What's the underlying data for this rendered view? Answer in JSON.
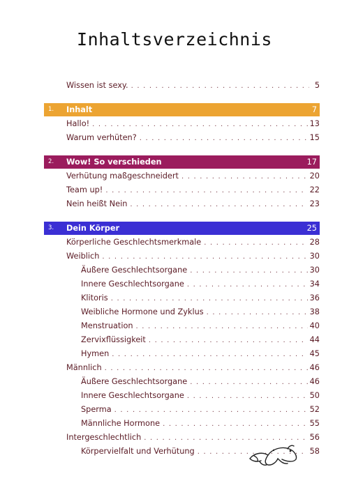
{
  "title": "Inhaltsverzeichnis",
  "intro": {
    "title": "Wissen ist sexy.",
    "page": "5"
  },
  "chapters": [
    {
      "num": "1.",
      "title": "Inhalt",
      "page": "7",
      "color": "#eca432",
      "entries": [
        {
          "title": "Hallo!",
          "page": "13"
        },
        {
          "title": "Warum verhüten?",
          "page": "15"
        }
      ]
    },
    {
      "num": "2.",
      "title": "Wow! So verschieden",
      "page": "17",
      "color": "#9b1c5d",
      "entries": [
        {
          "title": "Verhütung maßgeschneidert",
          "page": "20"
        },
        {
          "title": "Team up!",
          "page": "22"
        },
        {
          "title": "Nein heißt Nein",
          "page": "23"
        }
      ]
    },
    {
      "num": "3.",
      "title": "Dein Körper",
      "page": "25",
      "color": "#3b2fd4",
      "entries": [
        {
          "title": "Körperliche Geschlechtsmerkmale",
          "page": "28"
        },
        {
          "title": "Weiblich",
          "page": "30"
        },
        {
          "title": "Äußere Geschlechtsorgane",
          "page": "30",
          "sub": true
        },
        {
          "title": "Innere Geschlechtsorgane",
          "page": "34",
          "sub": true
        },
        {
          "title": "Klitoris",
          "page": "36",
          "sub": true
        },
        {
          "title": "Weibliche Hormone und Zyklus",
          "page": "38",
          "sub": true
        },
        {
          "title": "Menstruation",
          "page": "40",
          "sub": true
        },
        {
          "title": "Zervixflüssigkeit",
          "page": "44",
          "sub": true
        },
        {
          "title": "Hymen",
          "page": "45",
          "sub": true
        },
        {
          "title": "Männlich",
          "page": "46"
        },
        {
          "title": "Äußere Geschlechtsorgane",
          "page": "46",
          "sub": true
        },
        {
          "title": "Innere Geschlechtsorgane",
          "page": "50",
          "sub": true
        },
        {
          "title": "Sperma",
          "page": "52",
          "sub": true
        },
        {
          "title": "Männliche Hormone",
          "page": "55",
          "sub": true
        },
        {
          "title": "Intergeschlechtlich",
          "page": "56"
        },
        {
          "title": "Körpervielfalt und Verhütung",
          "page": "58",
          "sub": true
        }
      ]
    }
  ],
  "decoration": {
    "icon": "frog-doodle-icon"
  }
}
